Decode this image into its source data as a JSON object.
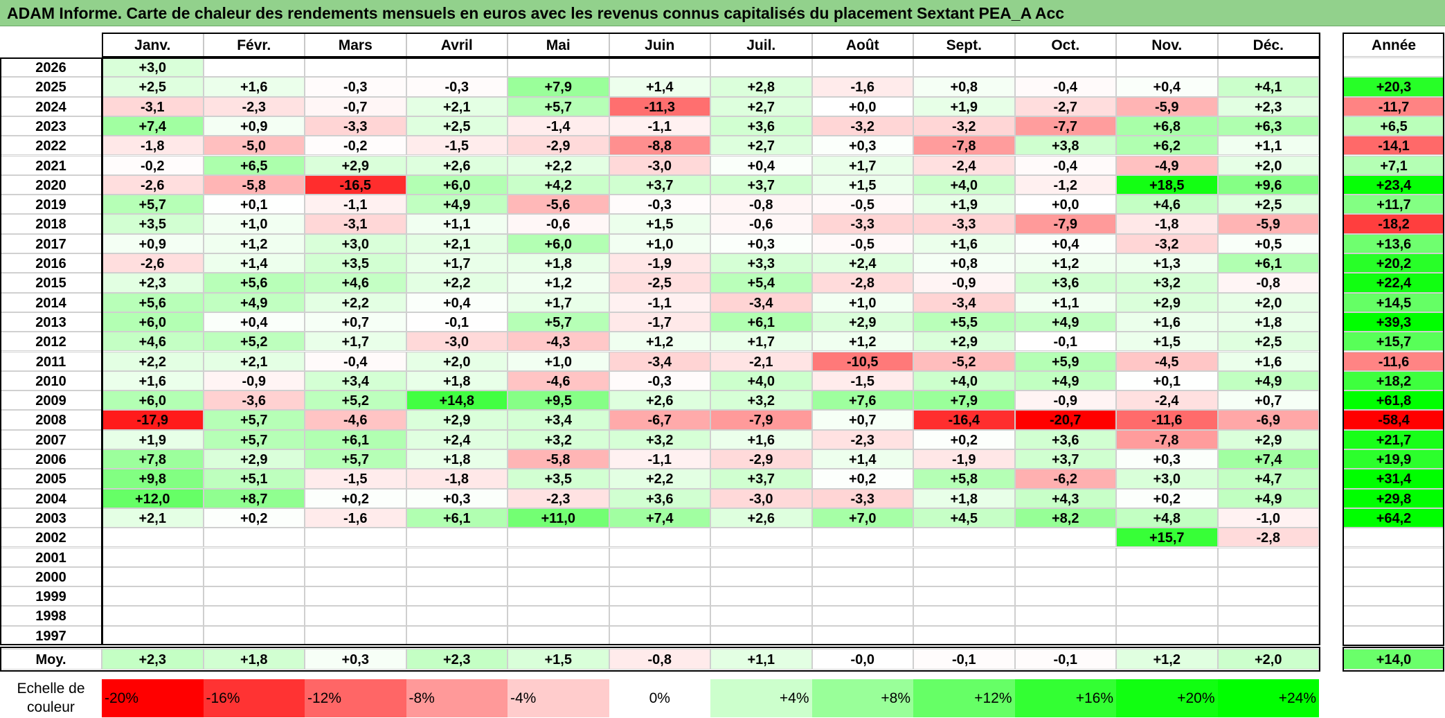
{
  "title": "ADAM Informe. Carte de chaleur des rendements mensuels en euros avec les revenus connus capitalisés du placement Sextant PEA_A Acc",
  "chart_data": {
    "type": "heatmap",
    "months": [
      "Janv.",
      "Févr.",
      "Mars",
      "Avril",
      "Mai",
      "Juin",
      "Juil.",
      "Août",
      "Sept.",
      "Oct.",
      "Nov.",
      "Déc."
    ],
    "year_header": "Année",
    "rows": [
      {
        "year": "2026",
        "m": [
          "+3,0",
          null,
          null,
          null,
          null,
          null,
          null,
          null,
          null,
          null,
          null,
          null
        ],
        "y": null
      },
      {
        "year": "2025",
        "m": [
          "+2,5",
          "+1,6",
          "-0,3",
          "-0,3",
          "+7,9",
          "+1,4",
          "+2,8",
          "-1,6",
          "+0,8",
          "-0,4",
          "+0,4",
          "+4,1"
        ],
        "y": "+20,3"
      },
      {
        "year": "2024",
        "m": [
          "-3,1",
          "-2,3",
          "-0,7",
          "+2,1",
          "+5,7",
          "-11,3",
          "+2,7",
          "+0,0",
          "+1,9",
          "-2,7",
          "-5,9",
          "+2,3"
        ],
        "y": "-11,7"
      },
      {
        "year": "2023",
        "m": [
          "+7,4",
          "+0,9",
          "-3,3",
          "+2,5",
          "-1,4",
          "-1,1",
          "+3,6",
          "-3,2",
          "-3,2",
          "-7,7",
          "+6,8",
          "+6,3"
        ],
        "y": "+6,5"
      },
      {
        "year": "2022",
        "m": [
          "-1,8",
          "-5,0",
          "-0,2",
          "-1,5",
          "-2,9",
          "-8,8",
          "+2,7",
          "+0,3",
          "-7,8",
          "+3,8",
          "+6,2",
          "+1,1"
        ],
        "y": "-14,1"
      },
      {
        "year": "2021",
        "m": [
          "-0,2",
          "+6,5",
          "+2,9",
          "+2,6",
          "+2,2",
          "-3,0",
          "+0,4",
          "+1,7",
          "-2,4",
          "-0,4",
          "-4,9",
          "+2,0"
        ],
        "y": "+7,1"
      },
      {
        "year": "2020",
        "m": [
          "-2,6",
          "-5,8",
          "-16,5",
          "+6,0",
          "+4,2",
          "+3,7",
          "+3,7",
          "+1,5",
          "+4,0",
          "-1,2",
          "+18,5",
          "+9,6"
        ],
        "y": "+23,4"
      },
      {
        "year": "2019",
        "m": [
          "+5,7",
          "+0,1",
          "-1,1",
          "+4,9",
          "-5,6",
          "-0,3",
          "-0,8",
          "-0,5",
          "+1,9",
          "+0,0",
          "+4,6",
          "+2,5"
        ],
        "y": "+11,7"
      },
      {
        "year": "2018",
        "m": [
          "+3,5",
          "+1,0",
          "-3,1",
          "+1,1",
          "-0,6",
          "+1,5",
          "-0,6",
          "-3,3",
          "-3,3",
          "-7,9",
          "-1,8",
          "-5,9"
        ],
        "y": "-18,2"
      },
      {
        "year": "2017",
        "m": [
          "+0,9",
          "+1,2",
          "+3,0",
          "+2,1",
          "+6,0",
          "+1,0",
          "+0,3",
          "-0,5",
          "+1,6",
          "+0,4",
          "-3,2",
          "+0,5"
        ],
        "y": "+13,6"
      },
      {
        "year": "2016",
        "m": [
          "-2,6",
          "+1,4",
          "+3,5",
          "+1,7",
          "+1,8",
          "-1,9",
          "+3,3",
          "+2,4",
          "+0,8",
          "+1,2",
          "+1,3",
          "+6,1"
        ],
        "y": "+20,2"
      },
      {
        "year": "2015",
        "m": [
          "+2,3",
          "+5,6",
          "+4,6",
          "+2,2",
          "+1,2",
          "-2,5",
          "+5,4",
          "-2,8",
          "-0,9",
          "+3,6",
          "+3,2",
          "-0,8"
        ],
        "y": "+22,4"
      },
      {
        "year": "2014",
        "m": [
          "+5,6",
          "+4,9",
          "+2,2",
          "+0,4",
          "+1,7",
          "-1,1",
          "-3,4",
          "+1,0",
          "-3,4",
          "+1,1",
          "+2,9",
          "+2,0"
        ],
        "y": "+14,5"
      },
      {
        "year": "2013",
        "m": [
          "+6,0",
          "+0,4",
          "+0,7",
          "-0,1",
          "+5,7",
          "-1,7",
          "+6,1",
          "+2,9",
          "+5,5",
          "+4,9",
          "+1,6",
          "+1,8"
        ],
        "y": "+39,3"
      },
      {
        "year": "2012",
        "m": [
          "+4,6",
          "+5,2",
          "+1,7",
          "-3,0",
          "-4,3",
          "+1,2",
          "+1,7",
          "+1,2",
          "+2,9",
          "-0,1",
          "+1,5",
          "+2,5"
        ],
        "y": "+15,7"
      },
      {
        "year": "2011",
        "m": [
          "+2,2",
          "+2,1",
          "-0,4",
          "+2,0",
          "+1,0",
          "-3,4",
          "-2,1",
          "-10,5",
          "-5,2",
          "+5,9",
          "-4,5",
          "+1,6"
        ],
        "y": "-11,6"
      },
      {
        "year": "2010",
        "m": [
          "+1,6",
          "-0,9",
          "+3,4",
          "+1,8",
          "-4,6",
          "-0,3",
          "+4,0",
          "-1,5",
          "+4,0",
          "+4,9",
          "+0,1",
          "+4,9"
        ],
        "y": "+18,2"
      },
      {
        "year": "2009",
        "m": [
          "+6,0",
          "-3,6",
          "+5,2",
          "+14,8",
          "+9,5",
          "+2,6",
          "+3,2",
          "+7,6",
          "+7,9",
          "-0,9",
          "-2,4",
          "+0,7"
        ],
        "y": "+61,8"
      },
      {
        "year": "2008",
        "m": [
          "-17,9",
          "+5,7",
          "-4,6",
          "+2,9",
          "+3,4",
          "-6,7",
          "-7,9",
          "+0,7",
          "-16,4",
          "-20,7",
          "-11,6",
          "-6,9"
        ],
        "y": "-58,4"
      },
      {
        "year": "2007",
        "m": [
          "+1,9",
          "+5,7",
          "+6,1",
          "+2,4",
          "+3,2",
          "+3,2",
          "+1,6",
          "-2,3",
          "+0,2",
          "+3,6",
          "-7,8",
          "+2,9"
        ],
        "y": "+21,7"
      },
      {
        "year": "2006",
        "m": [
          "+7,8",
          "+2,9",
          "+5,7",
          "+1,8",
          "-5,8",
          "-1,1",
          "-2,9",
          "+1,4",
          "-1,9",
          "+3,7",
          "+0,3",
          "+7,4"
        ],
        "y": "+19,9"
      },
      {
        "year": "2005",
        "m": [
          "+9,8",
          "+5,1",
          "-1,5",
          "-1,8",
          "+3,5",
          "+2,2",
          "+3,7",
          "+0,2",
          "+5,8",
          "-6,2",
          "+3,0",
          "+4,7"
        ],
        "y": "+31,4"
      },
      {
        "year": "2004",
        "m": [
          "+12,0",
          "+8,7",
          "+0,2",
          "+0,3",
          "-2,3",
          "+3,6",
          "-3,0",
          "-3,3",
          "+1,8",
          "+4,3",
          "+0,2",
          "+4,9"
        ],
        "y": "+29,8"
      },
      {
        "year": "2003",
        "m": [
          "+2,1",
          "+0,2",
          "-1,6",
          "+6,1",
          "+11,0",
          "+7,4",
          "+2,6",
          "+7,0",
          "+4,5",
          "+8,2",
          "+4,8",
          "-1,0"
        ],
        "y": "+64,2"
      },
      {
        "year": "2002",
        "m": [
          null,
          null,
          null,
          null,
          null,
          null,
          null,
          null,
          null,
          null,
          "+15,7",
          "-2,8"
        ],
        "y": null
      },
      {
        "year": "2001",
        "m": [
          null,
          null,
          null,
          null,
          null,
          null,
          null,
          null,
          null,
          null,
          null,
          null
        ],
        "y": null
      },
      {
        "year": "2000",
        "m": [
          null,
          null,
          null,
          null,
          null,
          null,
          null,
          null,
          null,
          null,
          null,
          null
        ],
        "y": null
      },
      {
        "year": "1999",
        "m": [
          null,
          null,
          null,
          null,
          null,
          null,
          null,
          null,
          null,
          null,
          null,
          null
        ],
        "y": null
      },
      {
        "year": "1998",
        "m": [
          null,
          null,
          null,
          null,
          null,
          null,
          null,
          null,
          null,
          null,
          null,
          null
        ],
        "y": null
      },
      {
        "year": "1997",
        "m": [
          null,
          null,
          null,
          null,
          null,
          null,
          null,
          null,
          null,
          null,
          null,
          null
        ],
        "y": null
      }
    ],
    "average": {
      "label": "Moy.",
      "m": [
        "+2,3",
        "+1,8",
        "+0,3",
        "+2,3",
        "+1,5",
        "-0,8",
        "+1,1",
        "-0,0",
        "-0,1",
        "-0,1",
        "+1,2",
        "+2,0"
      ],
      "y": "+14,0"
    },
    "legend": {
      "label": "Echelle de couleur",
      "steps": [
        "-20%",
        "-16%",
        "-12%",
        "-8%",
        "-4%",
        "0%",
        "+4%",
        "+8%",
        "+12%",
        "+16%",
        "+20%",
        "+24%"
      ],
      "colors": [
        "#ff0000",
        "#ff3333",
        "#ff6666",
        "#ff9999",
        "#ffcccc",
        "#ffffff",
        "#ccffcc",
        "#99ff99",
        "#66ff66",
        "#33ff33",
        "#11ff11",
        "#00ff00"
      ]
    }
  }
}
